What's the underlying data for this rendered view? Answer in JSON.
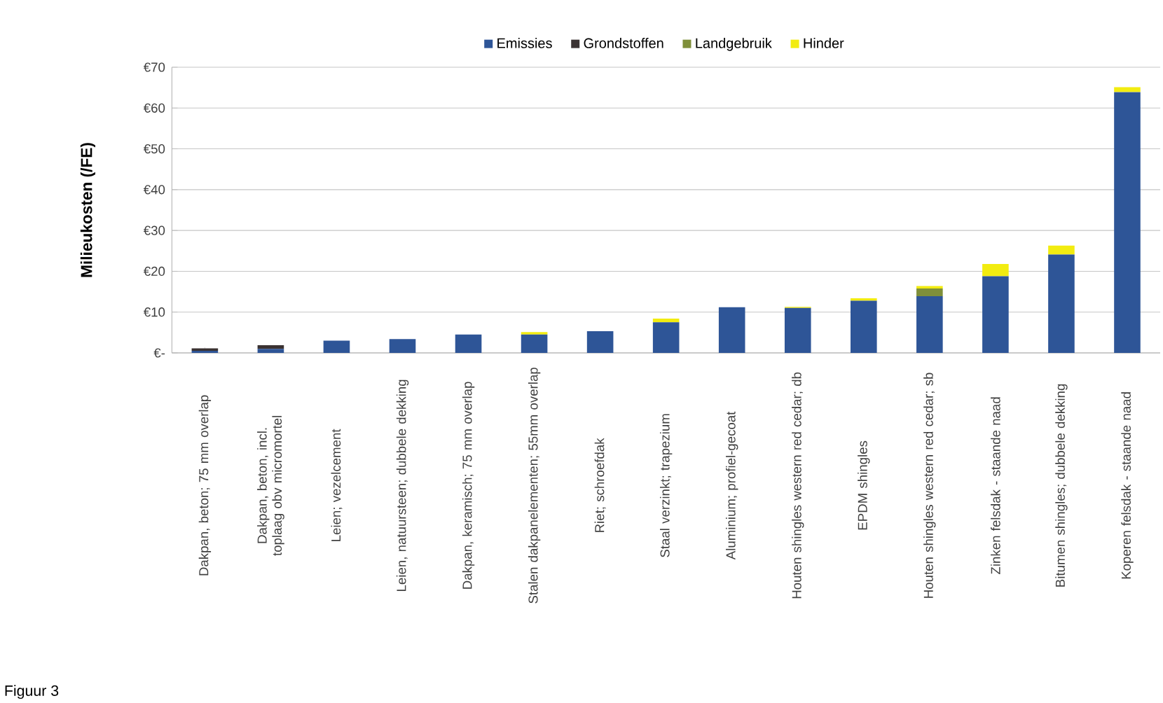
{
  "chart_data": {
    "type": "bar",
    "stacked": true,
    "ylabel": "Milieukosten (/FE)",
    "categories": [
      "Dakpan, beton; 75 mm overlap",
      "Dakpan, beton, incl. toplaag obv micromortel",
      "Leien; vezelcement",
      "Leien, natuursteen; dubbele dekking",
      "Dakpan, keramisch; 75 mm overlap",
      "Stalen dakpanelementen; 55mm overlap",
      "Riet; schroefdak",
      "Staal verzinkt; trapezium",
      "Aluminium; profiel-gecoat",
      "Houten shingles western red cedar; db",
      "EPDM shingles",
      "Houten shingles western red cedar; sb",
      "Zinken felsdak - staande naad",
      "Bitumen shingles; dubbele dekking",
      "Koperen felsdak - staande naad"
    ],
    "series": [
      {
        "name": "Emissies",
        "color": "#2e5597",
        "values": [
          0.5,
          1.0,
          3.0,
          3.4,
          4.5,
          4.5,
          5.3,
          7.5,
          11.2,
          11.0,
          12.8,
          13.9,
          18.8,
          24.1,
          63.9
        ]
      },
      {
        "name": "Grondstoffen",
        "color": "#3a3232",
        "values": [
          0.6,
          0.9,
          0,
          0,
          0,
          0,
          0,
          0,
          0,
          0,
          0,
          0,
          0,
          0,
          0
        ]
      },
      {
        "name": "Landgebruik",
        "color": "#7f8f3a",
        "values": [
          0,
          0,
          0,
          0,
          0,
          0,
          0,
          0,
          0,
          0,
          0,
          1.9,
          0,
          0,
          0
        ]
      },
      {
        "name": "Hinder",
        "color": "#f2ec10",
        "values": [
          0,
          0,
          0,
          0,
          0,
          0.6,
          0,
          0.9,
          0,
          0.3,
          0.6,
          0.6,
          3.0,
          2.2,
          1.2
        ]
      }
    ],
    "ylim": [
      0,
      70
    ],
    "yticks": [
      {
        "value": 0,
        "label": "€-"
      },
      {
        "value": 10,
        "label": "€10"
      },
      {
        "value": 20,
        "label": "€20"
      },
      {
        "value": 30,
        "label": "€30"
      },
      {
        "value": 40,
        "label": "€40"
      },
      {
        "value": 50,
        "label": "€50"
      },
      {
        "value": 60,
        "label": "€60"
      },
      {
        "value": 70,
        "label": "€70"
      }
    ],
    "grid": "y",
    "legend": "top",
    "annotations": [
      "Figuur 3"
    ]
  }
}
